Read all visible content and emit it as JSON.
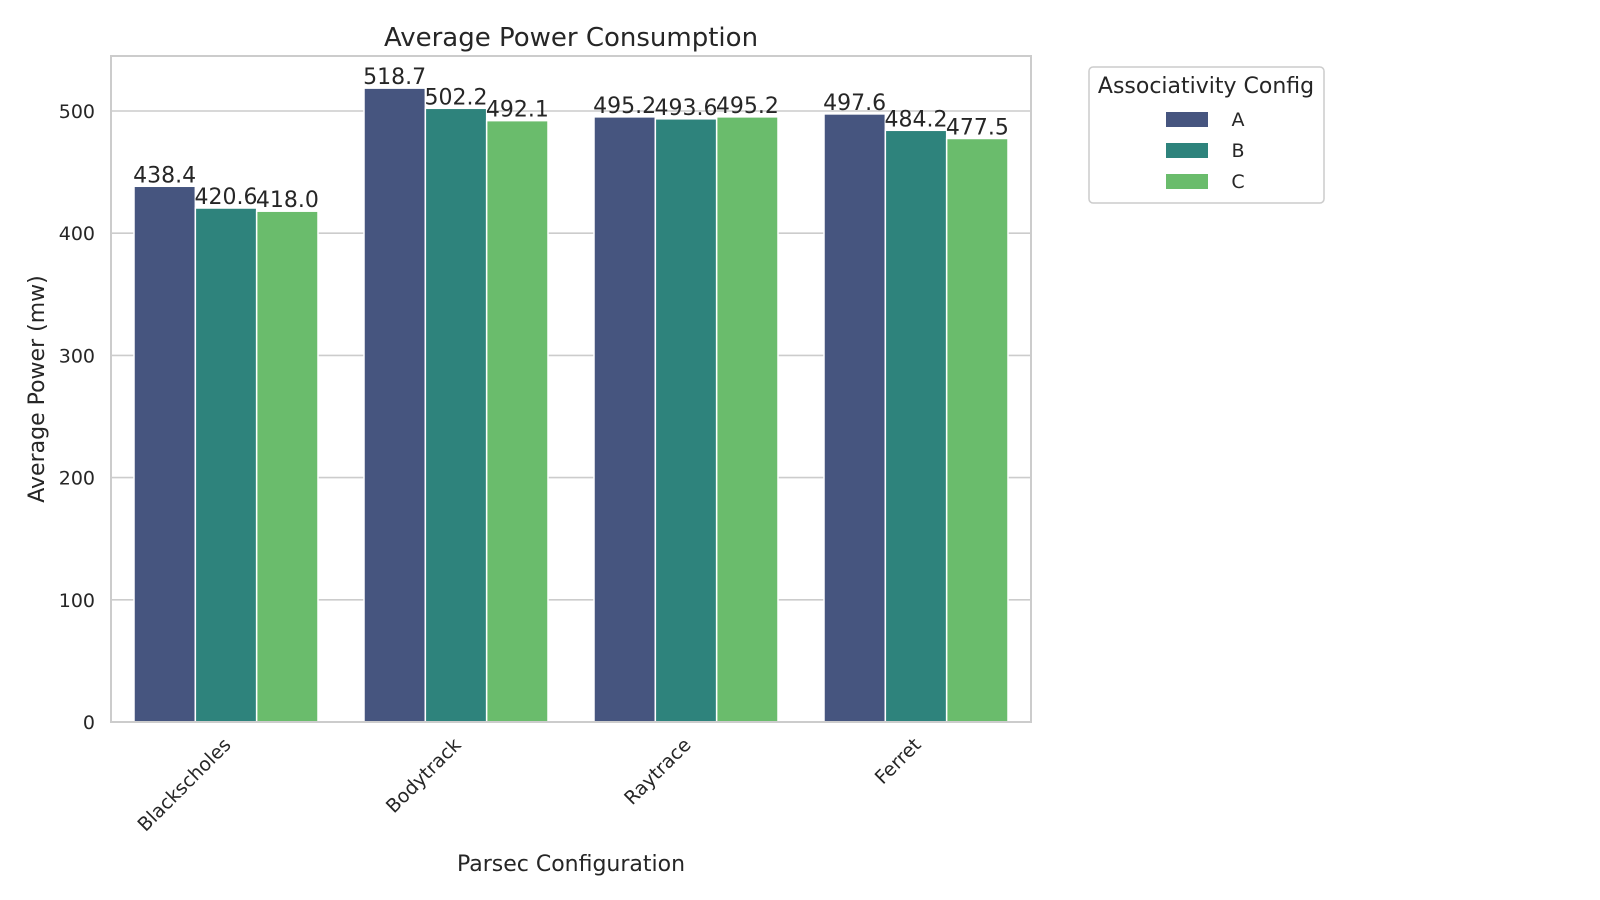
{
  "chart_data": {
    "type": "bar",
    "title": "Average Power Consumption",
    "xlabel": "Parsec Configuration",
    "ylabel": "Average Power (mw)",
    "categories": [
      "Blackscholes",
      "Bodytrack",
      "Raytrace",
      "Ferret"
    ],
    "series": [
      {
        "name": "A",
        "color": "#46557f",
        "values": [
          438.4,
          518.7,
          495.2,
          497.6
        ],
        "labels": [
          "438.4",
          "518.7",
          "495.2",
          "497.6"
        ]
      },
      {
        "name": "B",
        "color": "#2e837c",
        "values": [
          420.6,
          502.2,
          493.6,
          484.2
        ],
        "labels": [
          "420.6",
          "502.2",
          "493.6",
          "484.2"
        ]
      },
      {
        "name": "C",
        "color": "#6abc6c",
        "values": [
          418.0,
          492.1,
          495.2,
          477.5
        ],
        "labels": [
          "418.0",
          "492.1",
          "495.2",
          "477.5"
        ]
      }
    ],
    "ylim": [
      0,
      545
    ],
    "yticks": [
      0,
      100,
      200,
      300,
      400,
      500
    ],
    "grid": true,
    "legend": {
      "title": "Associativity Config",
      "placement": "outside-top-right"
    }
  }
}
